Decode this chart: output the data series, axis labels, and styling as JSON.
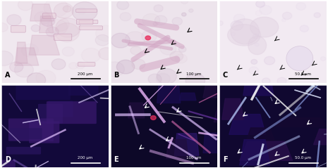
{
  "grid_rows": 2,
  "grid_cols": 3,
  "panel_labels": [
    "A",
    "B",
    "C",
    "D",
    "E",
    "F"
  ],
  "label_color_top": "black",
  "label_color_bottom": "white",
  "top_bg_color": "#f0e8ef",
  "bottom_bg_color": "#1a1040",
  "scale_bar_color_top": "black",
  "scale_bar_color_bottom": "white",
  "border_color": "white",
  "border_lw": 0.5,
  "figsize": [
    4.65,
    2.39
  ],
  "dpi": 100,
  "panel_label_fontsize": 7,
  "scale_label_fontsize": 4
}
